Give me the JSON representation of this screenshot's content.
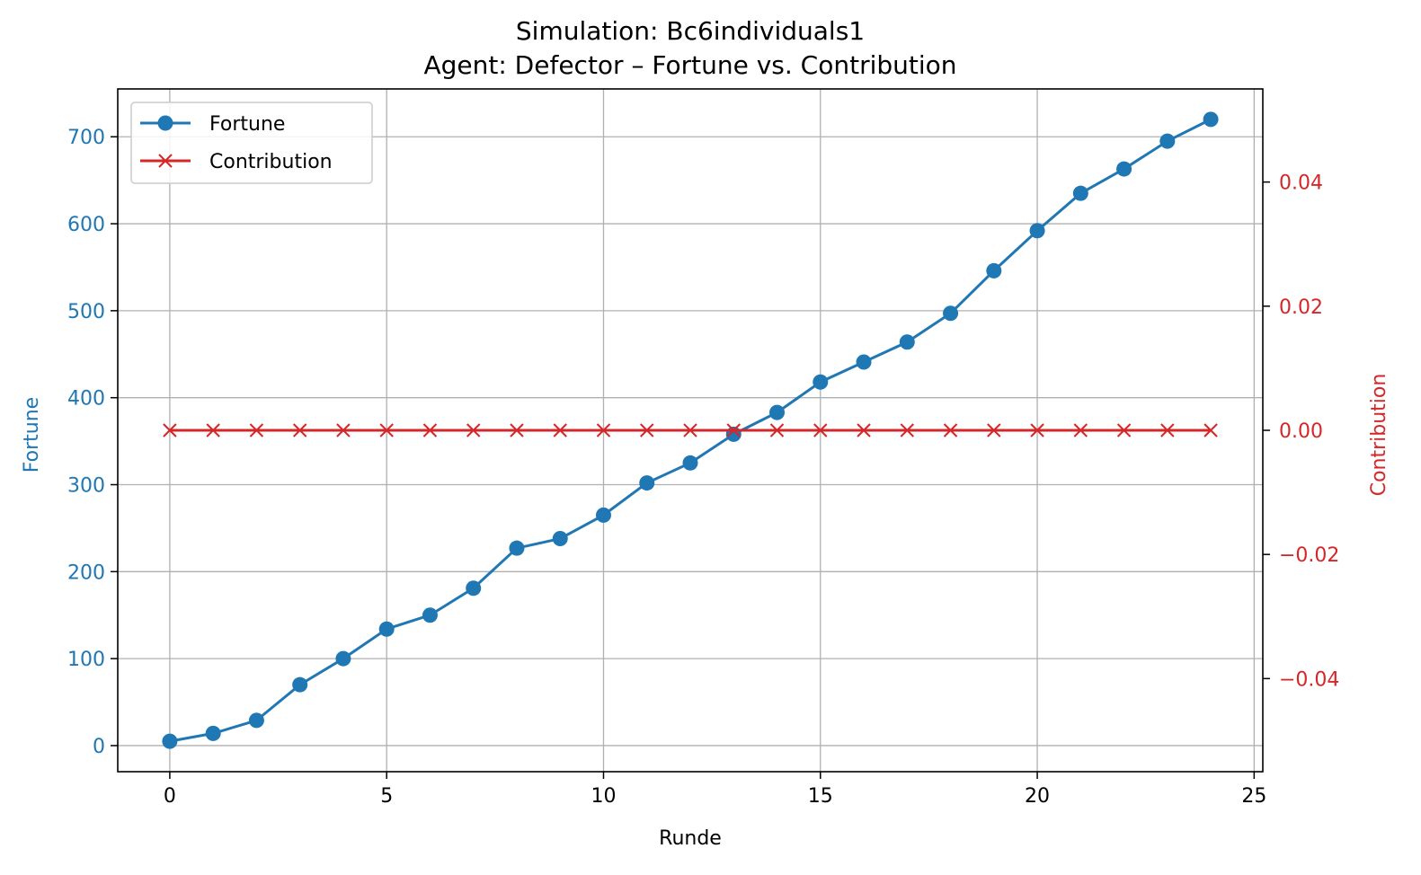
{
  "chart_data": {
    "type": "line",
    "title": "Simulation: Bc6individuals1",
    "subtitle": "Agent: Defector – Fortune vs. Contribution",
    "xlabel": "Runde",
    "ylabel_left": "Fortune",
    "ylabel_right": "Contribution",
    "xlim": [
      -1.2,
      25.2
    ],
    "ylim_left": [
      -30,
      755
    ],
    "ylim_right": [
      -0.055,
      0.055
    ],
    "x_ticks": [
      0,
      5,
      10,
      15,
      20,
      25
    ],
    "x_tick_labels": [
      "0",
      "5",
      "10",
      "15",
      "20",
      "25"
    ],
    "y_left_ticks": [
      0,
      100,
      200,
      300,
      400,
      500,
      600,
      700
    ],
    "y_left_tick_labels": [
      "0",
      "100",
      "200",
      "300",
      "400",
      "500",
      "600",
      "700"
    ],
    "y_right_ticks": [
      -0.04,
      -0.02,
      0.0,
      0.02,
      0.04
    ],
    "y_right_tick_labels": [
      "−0.04",
      "−0.02",
      "0.00",
      "0.02",
      "0.04"
    ],
    "grid": true,
    "legend_position": "top-left",
    "x": [
      0,
      1,
      2,
      3,
      4,
      5,
      6,
      7,
      8,
      9,
      10,
      11,
      12,
      13,
      14,
      15,
      16,
      17,
      18,
      19,
      20,
      21,
      22,
      23,
      24
    ],
    "series": [
      {
        "name": "Fortune",
        "axis": "left",
        "marker": "circle",
        "color": "#1f77b4",
        "values": [
          5,
          14,
          29,
          70,
          100,
          134,
          150,
          181,
          227,
          238,
          265,
          302,
          325,
          358,
          383,
          418,
          441,
          464,
          497,
          546,
          592,
          635,
          663,
          695,
          720
        ]
      },
      {
        "name": "Contribution",
        "axis": "right",
        "marker": "x",
        "color": "#d62728",
        "values": [
          0,
          0,
          0,
          0,
          0,
          0,
          0,
          0,
          0,
          0,
          0,
          0,
          0,
          0,
          0,
          0,
          0,
          0,
          0,
          0,
          0,
          0,
          0,
          0,
          0
        ]
      }
    ]
  },
  "colors": {
    "left_axis": "#1f77b4",
    "right_axis": "#d62728",
    "grid": "#b0b0b0",
    "frame": "#000000"
  }
}
